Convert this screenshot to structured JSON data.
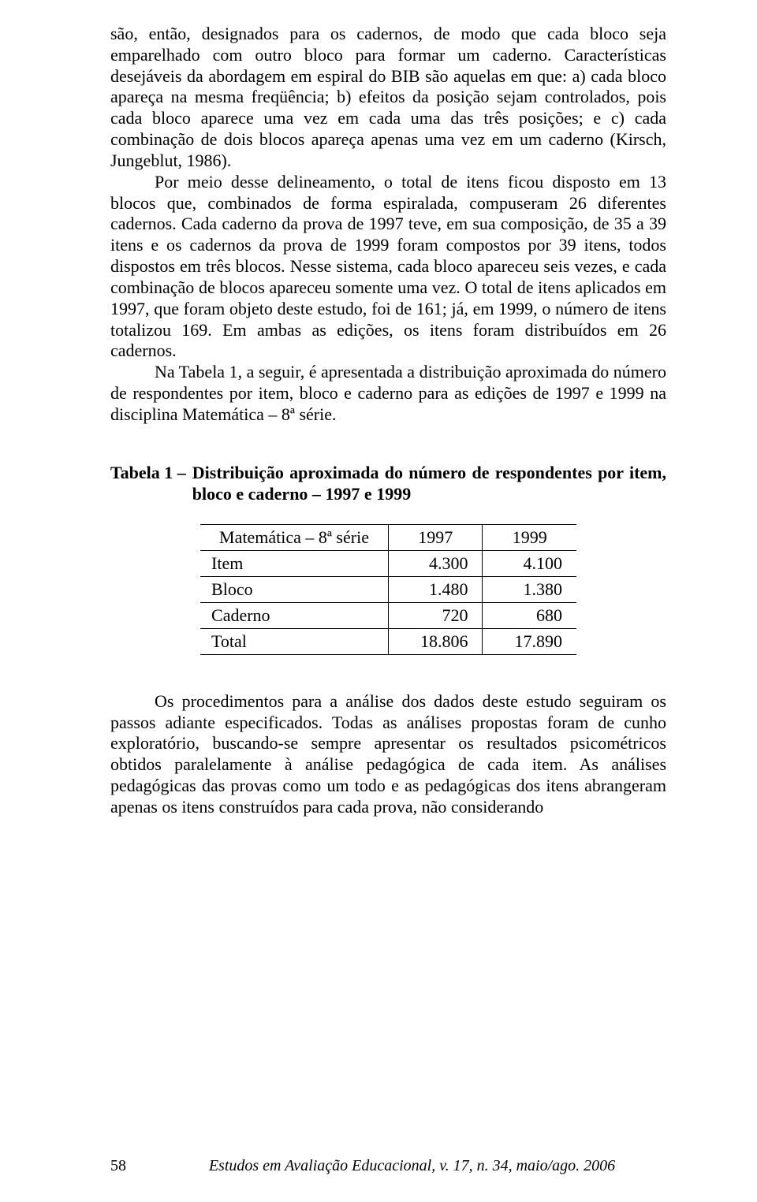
{
  "paragraphs": {
    "p1": "são, então, designados para os cadernos, de modo que cada bloco seja emparelhado com outro bloco para formar um caderno. Características desejáveis da abordagem em espiral do BIB são aquelas em que: a) cada bloco apareça na mesma freqüência; b) efeitos da posição sejam controlados, pois cada bloco aparece uma vez em cada uma das três posições; e c) cada combinação de dois blocos apareça apenas uma vez em um caderno (Kirsch, Jungeblut, 1986).",
    "p2": "Por meio desse delineamento, o total de itens ficou disposto em 13 blocos que, combinados de forma espiralada, compuseram 26 diferentes cadernos. Cada caderno da prova de 1997 teve, em sua composição, de 35 a 39 itens e os cadernos da prova de 1999 foram compostos por 39 itens, todos dispostos em três blocos. Nesse sistema, cada bloco apareceu seis vezes, e cada combinação de blocos apareceu somente uma vez. O total de itens aplicados em 1997, que foram objeto deste estudo, foi de 161; já, em 1999, o número de itens totalizou 169. Em ambas as edições, os itens foram distribuídos em 26 cadernos.",
    "p3": "Na Tabela 1, a seguir, é apresentada a distribuição aproximada do número de respondentes por item, bloco e caderno para as edições de 1997 e 1999 na disciplina Matemática – 8ª série.",
    "p4": "Os procedimentos para a análise dos dados deste estudo seguiram os passos adiante especificados. Todas as análises propostas foram de cunho exploratório, buscando-se sempre apresentar os resultados psicométricos obtidos paralelamente à análise pedagógica de cada item. As análises pedagógicas das provas como um todo e as pedagógicas dos itens abrangeram apenas os itens construídos para cada prova, não considerando"
  },
  "table": {
    "caption_label": "Tabela 1 –",
    "caption_rest": "Distribuição aproximada do número de respondentes por item, bloco e caderno – 1997 e 1999",
    "header": {
      "col1": "Matemática – 8ª série",
      "col2": "1997",
      "col3": "1999"
    },
    "rows": [
      {
        "label": "Item",
        "y1997": "4.300",
        "y1999": "4.100"
      },
      {
        "label": "Bloco",
        "y1997": "1.480",
        "y1999": "1.380"
      },
      {
        "label": "Caderno",
        "y1997": "720",
        "y1999": "680"
      },
      {
        "label": "Total",
        "y1997": "18.806",
        "y1999": "17.890"
      }
    ]
  },
  "footer": {
    "page": "58",
    "journal": "Estudos em Avaliação Educacional, v. 17, n. 34, maio/ago. 2006"
  }
}
